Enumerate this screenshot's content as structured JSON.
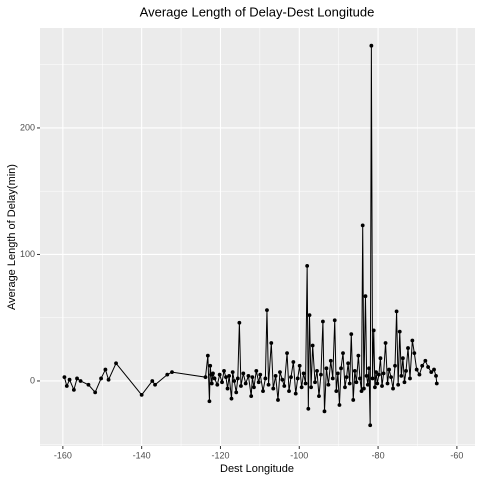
{
  "chart_data": {
    "type": "line",
    "title": "Average Length of Delay-Dest Longitude",
    "x_label": "Dest Longitude",
    "y_label": "Average Length of Delay(min)",
    "color": "#000000",
    "markers": true,
    "grid": true,
    "xlim": [
      -165.8,
      -55.4
    ],
    "ylim": [
      -51.4,
      279
    ],
    "xticks": [
      -160,
      -140,
      -120,
      -100,
      -80,
      -60
    ],
    "yticks": [
      0,
      100,
      200
    ],
    "x_minor_grid": [
      -150,
      -130,
      -110,
      -90,
      -70
    ],
    "y_minor_grid": [
      -50,
      50,
      150,
      250
    ],
    "x": [
      -159.6,
      -159,
      -158.3,
      -157.2,
      -156.4,
      -155.5,
      -153.5,
      -151.8,
      -150.3,
      -149.2,
      -148.4,
      -146.5,
      -140,
      -137.3,
      -136.6,
      -133.5,
      -132.3,
      -123.8,
      -123.2,
      -122.8,
      -122.6,
      -122.4,
      -122.2,
      -121.9,
      -121.5,
      -120.8,
      -120.2,
      -119.6,
      -119.1,
      -118.6,
      -118.2,
      -117.8,
      -117.2,
      -116.9,
      -116.5,
      -116,
      -115.6,
      -115.2,
      -114.8,
      -114.2,
      -113.6,
      -112.9,
      -112.2,
      -111.9,
      -111.5,
      -110.9,
      -110.3,
      -109.9,
      -109.2,
      -108.6,
      -108.2,
      -107.8,
      -107.1,
      -106.6,
      -106,
      -105.4,
      -104.9,
      -104.3,
      -103.8,
      -103.1,
      -102.6,
      -102.1,
      -101.5,
      -100.9,
      -100.4,
      -99.9,
      -99.4,
      -98.9,
      -98.4,
      -98,
      -97.7,
      -97.4,
      -97,
      -96.6,
      -96,
      -95.5,
      -95,
      -94.5,
      -94,
      -93.6,
      -93.1,
      -92.6,
      -92,
      -91.5,
      -91,
      -90.6,
      -90.2,
      -89.8,
      -89.4,
      -88.9,
      -88.4,
      -88,
      -87.6,
      -87.2,
      -86.8,
      -86.3,
      -85.9,
      -85.5,
      -85,
      -84.6,
      -84.2,
      -83.9,
      -83.6,
      -83.2,
      -82.9,
      -82.6,
      -82.3,
      -82,
      -81.7,
      -81.4,
      -81.1,
      -80.8,
      -80.5,
      -80.2,
      -79.8,
      -79.4,
      -79,
      -78.6,
      -78.1,
      -77.6,
      -77.2,
      -76.7,
      -76.2,
      -75.7,
      -75.3,
      -74.9,
      -74.5,
      -74.1,
      -73.7,
      -73.3,
      -72.9,
      -72.4,
      -71.9,
      -71.3,
      -70.8,
      -70.2,
      -69.5,
      -68.8,
      -68,
      -67.3,
      -66.5,
      -65.8,
      -65.3,
      -65.1
    ],
    "values": [
      3,
      -4,
      1,
      -7,
      2,
      0,
      -3,
      -9,
      2,
      9,
      1,
      14,
      -11,
      0,
      -3,
      5,
      7,
      3,
      20,
      -16,
      12,
      5,
      -2,
      6,
      2,
      -3,
      5,
      -1,
      8,
      3,
      -6,
      4,
      -14,
      7,
      0,
      -9,
      2,
      46,
      -4,
      6,
      -2,
      4,
      -12,
      3,
      -5,
      8,
      -1,
      5,
      -8,
      2,
      56,
      -3,
      30,
      -6,
      4,
      -15,
      7,
      1,
      -4,
      22,
      -8,
      3,
      15,
      -10,
      2,
      12,
      -5,
      6,
      -2,
      91,
      -22,
      52,
      -5,
      28,
      -1,
      8,
      -12,
      5,
      47,
      -24,
      10,
      -3,
      16,
      2,
      48,
      -8,
      6,
      -19,
      10,
      22,
      -5,
      3,
      14,
      -2,
      37,
      -15,
      8,
      -1,
      20,
      2,
      -8,
      123,
      -6,
      67,
      4,
      -3,
      10,
      -35,
      265,
      2,
      40,
      -5,
      7,
      -2,
      5,
      18,
      -4,
      6,
      30,
      -2,
      9,
      3,
      -6,
      12,
      55,
      -3,
      39,
      4,
      18,
      -1,
      8,
      26,
      2,
      32,
      22,
      9,
      5,
      12,
      16,
      11,
      7,
      9,
      4,
      -2
    ]
  }
}
